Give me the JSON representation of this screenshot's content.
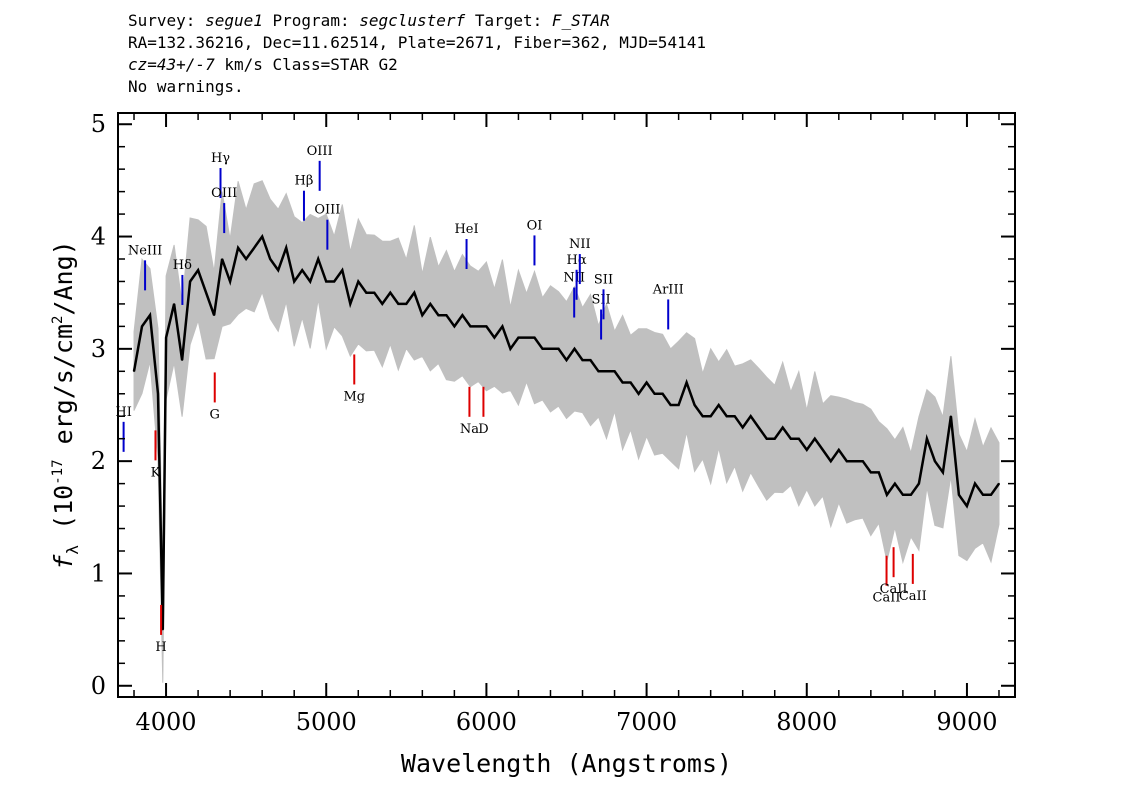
{
  "header": {
    "survey_label": "Survey:",
    "survey": "segue1",
    "program_label": "Program:",
    "program": "segclusterf",
    "target_label": "Target:",
    "target": "F_STAR",
    "line2": "RA=132.36216, Dec=11.62514, Plate=2671, Fiber=362, MJD=54141",
    "cz_value": "cz=43+/-7",
    "cz_rest": " km/s Class=STAR G2",
    "line4": "No warnings."
  },
  "chart_data": {
    "type": "line",
    "title": "",
    "xlabel": "Wavelength (Angstroms)",
    "ylabel_parts": {
      "prefix": "f",
      "sub": "λ",
      "mid": " (10",
      "sup": "-17",
      "mid2": " erg/s/cm",
      "sup2": "2",
      "end": "/Ang)"
    },
    "xlim": [
      3700,
      9300
    ],
    "ylim": [
      -0.1,
      5.1
    ],
    "xticks": [
      4000,
      5000,
      6000,
      7000,
      8000,
      9000
    ],
    "xtick_labels": [
      "4000",
      "5000",
      "6000",
      "7000",
      "8000",
      "9000"
    ],
    "yticks": [
      0,
      1,
      2,
      3,
      4,
      5
    ],
    "ytick_labels": [
      "0",
      "1",
      "2",
      "3",
      "4",
      "5"
    ],
    "grid": false,
    "series": [
      {
        "color": "#000000",
        "x": [
          3800,
          3850,
          3900,
          3950,
          3980,
          4000,
          4050,
          4100,
          4150,
          4200,
          4250,
          4300,
          4350,
          4400,
          4450,
          4500,
          4550,
          4600,
          4650,
          4700,
          4750,
          4800,
          4850,
          4900,
          4950,
          5000,
          5050,
          5100,
          5150,
          5200,
          5250,
          5300,
          5350,
          5400,
          5450,
          5500,
          5550,
          5600,
          5650,
          5700,
          5750,
          5800,
          5850,
          5900,
          5950,
          6000,
          6050,
          6100,
          6150,
          6200,
          6250,
          6300,
          6350,
          6400,
          6450,
          6500,
          6550,
          6600,
          6650,
          6700,
          6750,
          6800,
          6850,
          6900,
          6950,
          7000,
          7050,
          7100,
          7150,
          7200,
          7250,
          7300,
          7350,
          7400,
          7450,
          7500,
          7550,
          7600,
          7650,
          7700,
          7750,
          7800,
          7850,
          7900,
          7950,
          8000,
          8050,
          8100,
          8150,
          8200,
          8250,
          8300,
          8350,
          8400,
          8450,
          8500,
          8550,
          8600,
          8650,
          8700,
          8750,
          8800,
          8850,
          8900,
          8950,
          9000,
          9050,
          9100,
          9150,
          9200
        ],
        "y": [
          2.8,
          3.2,
          3.3,
          2.6,
          0.5,
          3.1,
          3.4,
          2.9,
          3.6,
          3.7,
          3.5,
          3.3,
          3.8,
          3.6,
          3.9,
          3.8,
          3.9,
          4.0,
          3.8,
          3.7,
          3.9,
          3.6,
          3.7,
          3.6,
          3.8,
          3.6,
          3.6,
          3.7,
          3.4,
          3.6,
          3.5,
          3.5,
          3.4,
          3.5,
          3.4,
          3.4,
          3.5,
          3.3,
          3.4,
          3.3,
          3.3,
          3.2,
          3.3,
          3.2,
          3.2,
          3.2,
          3.1,
          3.2,
          3.0,
          3.1,
          3.1,
          3.1,
          3.0,
          3.0,
          3.0,
          2.9,
          3.0,
          2.9,
          2.9,
          2.8,
          2.8,
          2.8,
          2.7,
          2.7,
          2.6,
          2.7,
          2.6,
          2.6,
          2.5,
          2.5,
          2.7,
          2.5,
          2.4,
          2.4,
          2.5,
          2.4,
          2.4,
          2.3,
          2.4,
          2.3,
          2.2,
          2.2,
          2.3,
          2.2,
          2.2,
          2.1,
          2.2,
          2.1,
          2.0,
          2.1,
          2.0,
          2.0,
          2.0,
          1.9,
          1.9,
          1.7,
          1.8,
          1.7,
          1.7,
          1.8,
          2.2,
          2.0,
          1.9,
          2.4,
          1.7,
          1.6,
          1.8,
          1.7,
          1.7,
          1.8
        ]
      }
    ],
    "error_band_color": "#c0c0c0",
    "emission_color": "#0000cc",
    "absorption_color": "#dd0000",
    "emission_lines": [
      {
        "label": "NeIII",
        "x": 3869
      },
      {
        "label": "Hδ",
        "x": 4102
      },
      {
        "label": "Hγ",
        "x": 4340
      },
      {
        "label": "OIII",
        "x": 4363
      },
      {
        "label": "Hβ",
        "x": 4861
      },
      {
        "label": "OIII",
        "x": 4959
      },
      {
        "label": "OIII",
        "x": 5007
      },
      {
        "label": "HeI",
        "x": 5876
      },
      {
        "label": "OI",
        "x": 6300
      },
      {
        "label": "NII",
        "x": 6548
      },
      {
        "label": "Hα",
        "x": 6563
      },
      {
        "label": "NII",
        "x": 6583
      },
      {
        "label": "SII",
        "x": 6716
      },
      {
        "label": "SII",
        "x": 6731
      },
      {
        "label": "ArIII",
        "x": 7135
      },
      {
        "label": "HI",
        "x": 3735
      }
    ],
    "absorption_lines": [
      {
        "label": "K",
        "x": 3934
      },
      {
        "label": "H",
        "x": 3969
      },
      {
        "label": "G",
        "x": 4304
      },
      {
        "label": "Mg",
        "x": 5175
      },
      {
        "label": "Na",
        "x": 5894
      },
      {
        "label": "D",
        "x": 5894
      },
      {
        "label": "CaII",
        "x": 8498
      },
      {
        "label": "CaII",
        "x": 8542
      },
      {
        "label": "CaII",
        "x": 8662
      }
    ]
  }
}
